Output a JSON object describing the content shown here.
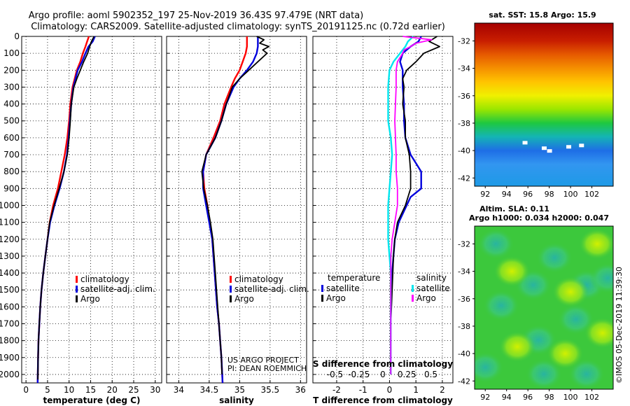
{
  "title_line1": "Argo profile: aoml 5902352_197 25-Nov-2019 36.43S 97.479E (NRT data)",
  "title_line2": "Climatology: CARS2009. Satellite-adjusted climatology: synTS_20191125.nc (0.72d earlier)",
  "map_sst_title": "sat. SST: 15.8 Argo: 15.9",
  "map_sla_title1": "Altim. SLA: 0.11",
  "map_sla_title2": "Argo h1000: 0.034 h2000: 0.047",
  "project_line1": "US ARGO PROJECT",
  "project_line2": "PI: DEAN ROEMMICH",
  "imos_stamp": "©IMOS 05-Dec-2019 11:39:30",
  "colors": {
    "climatology": "#ff0000",
    "satellite": "#0000dd",
    "argo": "#000000",
    "sat_s": "#00e5ee",
    "argo_s": "#ff00ff"
  },
  "chart_data": [
    {
      "type": "line",
      "panel": "temperature",
      "xlabel": "temperature (deg C)",
      "xlim": [
        -1,
        31.5
      ],
      "xticks": [
        0,
        5,
        10,
        15,
        20,
        25,
        30
      ],
      "xtick_labels": [
        "0",
        "5",
        "10",
        "15",
        "20",
        "25",
        "30"
      ],
      "ylim": [
        2050,
        0
      ],
      "yticks": [
        0,
        100,
        200,
        300,
        400,
        500,
        600,
        700,
        800,
        900,
        1000,
        1100,
        1200,
        1300,
        1400,
        1500,
        1600,
        1700,
        1800,
        1900,
        2000
      ],
      "ytick_labels": [
        "0",
        "100",
        "200",
        "300",
        "400",
        "500",
        "600",
        "700",
        "800",
        "900",
        "1000",
        "1100",
        "1200",
        "1300",
        "1400",
        "1500",
        "1600",
        "1700",
        "1800",
        "1900",
        "2000"
      ],
      "legend": [
        "climatology",
        "satellite-adj. clim.",
        "Argo"
      ],
      "series": [
        {
          "name": "climatology",
          "key": "climatology",
          "x": [
            14.6,
            14.2,
            13.8,
            13.2,
            12.6,
            11.8,
            11.3,
            10.8,
            10.3,
            10.0,
            9.6,
            9.0,
            8.2,
            7.4,
            6.3,
            5.5,
            5.0,
            4.5,
            4.0,
            3.6,
            3.3,
            3.1,
            2.9,
            2.8,
            2.7
          ],
          "y": [
            0,
            30,
            60,
            100,
            150,
            200,
            250,
            300,
            400,
            500,
            600,
            700,
            800,
            900,
            1000,
            1100,
            1200,
            1300,
            1400,
            1500,
            1600,
            1700,
            1800,
            1900,
            2050
          ]
        },
        {
          "name": "satellite-adj. clim.",
          "key": "satellite",
          "x": [
            16.0,
            15.5,
            14.5,
            13.8,
            13.0,
            12.0,
            11.5,
            11.0,
            10.5,
            10.2,
            9.9,
            9.5,
            8.8,
            7.8,
            6.6,
            5.6,
            5.0,
            4.5,
            4.0,
            3.6,
            3.3,
            3.1,
            2.9,
            2.8,
            2.7
          ],
          "y": [
            0,
            30,
            60,
            100,
            150,
            200,
            250,
            300,
            400,
            500,
            600,
            700,
            800,
            900,
            1000,
            1100,
            1200,
            1300,
            1400,
            1500,
            1600,
            1700,
            1800,
            1900,
            2050
          ]
        },
        {
          "name": "Argo",
          "key": "argo",
          "x": [
            15.8,
            15.2,
            14.8,
            14.3,
            13.4,
            12.6,
            11.8,
            11.1,
            10.5,
            10.3,
            10.0,
            9.6,
            8.8,
            7.7,
            6.5,
            5.5,
            5.0,
            4.5,
            4.0,
            3.6,
            3.3,
            3.1,
            2.9,
            2.8,
            2.75
          ],
          "y": [
            0,
            30,
            60,
            100,
            150,
            200,
            250,
            300,
            400,
            500,
            600,
            700,
            800,
            900,
            1000,
            1100,
            1200,
            1300,
            1400,
            1500,
            1600,
            1700,
            1800,
            1900,
            2030
          ]
        }
      ]
    },
    {
      "type": "line",
      "panel": "salinity",
      "xlabel": "salinity",
      "xlim": [
        33.8,
        36.1
      ],
      "xticks": [
        34,
        34.5,
        35,
        35.5,
        36
      ],
      "xtick_labels": [
        "34",
        "34.5",
        "35",
        "35.5",
        "36"
      ],
      "ylim": [
        2050,
        0
      ],
      "legend": [
        "climatology",
        "satellite-adj. clim.",
        "Argo"
      ],
      "series": [
        {
          "name": "climatology",
          "key": "climatology",
          "x": [
            35.12,
            35.12,
            35.1,
            35.05,
            35.0,
            34.92,
            34.86,
            34.75,
            34.68,
            34.57,
            34.45,
            34.4,
            34.42,
            34.47,
            34.51,
            34.55,
            34.59,
            34.63,
            34.66,
            34.68,
            34.7,
            34.72
          ],
          "y": [
            0,
            60,
            100,
            150,
            200,
            250,
            300,
            400,
            500,
            600,
            700,
            800,
            900,
            1000,
            1100,
            1200,
            1400,
            1600,
            1700,
            1800,
            1900,
            2050
          ]
        },
        {
          "name": "satellite-adj. clim.",
          "key": "satellite",
          "x": [
            35.3,
            35.3,
            35.28,
            35.22,
            35.12,
            35.0,
            34.9,
            34.78,
            34.7,
            34.6,
            34.45,
            34.4,
            34.4,
            34.45,
            34.5,
            34.55,
            34.59,
            34.63,
            34.66,
            34.68,
            34.7,
            34.72
          ],
          "y": [
            0,
            60,
            100,
            150,
            200,
            250,
            300,
            400,
            500,
            600,
            700,
            800,
            900,
            1000,
            1100,
            1200,
            1400,
            1600,
            1700,
            1800,
            1900,
            2050
          ]
        },
        {
          "name": "Argo",
          "key": "argo",
          "x": [
            35.28,
            35.4,
            35.33,
            35.48,
            35.38,
            35.45,
            35.3,
            35.15,
            35.0,
            34.88,
            34.78,
            34.7,
            34.6,
            34.45,
            34.38,
            34.41,
            34.47,
            34.52,
            34.56,
            34.6,
            34.64,
            34.66,
            34.68,
            34.7,
            34.71
          ],
          "y": [
            0,
            20,
            40,
            60,
            80,
            100,
            150,
            200,
            250,
            300,
            400,
            500,
            600,
            700,
            800,
            900,
            1000,
            1100,
            1200,
            1400,
            1600,
            1700,
            1800,
            1900,
            2000
          ]
        }
      ]
    },
    {
      "type": "line",
      "panel": "difference",
      "xlabel": "T difference from climatology",
      "xlim": [
        -2.9,
        2.4
      ],
      "xticks": [
        -2,
        -1,
        0,
        1,
        2
      ],
      "xtick_labels": [
        "-2",
        "-1",
        "0",
        "1",
        "2"
      ],
      "s_axis_label": "S difference from climatology",
      "s_ticks": [
        -0.5,
        -0.25,
        0,
        0.25,
        0.5
      ],
      "s_tick_labels": [
        "-0.5",
        "-0.25",
        "0",
        "0.25",
        "0.5"
      ],
      "ylim": [
        2050,
        0
      ],
      "legend_left_title": "temperature",
      "legend_left": [
        "satellite",
        "Argo"
      ],
      "legend_right_title": "salinity",
      "legend_right": [
        "satellite",
        "Argo"
      ],
      "series": [
        {
          "name": "temperature satellite",
          "key": "satellite",
          "x": [
            1.2,
            1.1,
            0.8,
            0.5,
            0.4,
            0.5,
            0.5,
            0.55,
            0.55,
            0.6,
            0.8,
            1.0,
            1.2,
            1.2,
            0.8,
            0.5,
            0.35,
            0.2,
            0.15,
            0.1,
            0.05,
            0.05,
            0.05,
            0.05
          ],
          "y": [
            0,
            30,
            60,
            100,
            150,
            200,
            300,
            400,
            500,
            600,
            700,
            750,
            800,
            900,
            950,
            1050,
            1100,
            1200,
            1300,
            1400,
            1600,
            1800,
            1900,
            2000
          ]
        },
        {
          "name": "temperature Argo",
          "key": "argo",
          "x": [
            1.8,
            1.5,
            1.9,
            1.3,
            1.0,
            0.65,
            0.5,
            0.55,
            0.5,
            0.6,
            0.6,
            0.75,
            0.8,
            0.8,
            0.6,
            0.3,
            0.2,
            0.15,
            0.1,
            0.05,
            0.05,
            0.05
          ],
          "y": [
            0,
            30,
            60,
            100,
            150,
            200,
            250,
            300,
            400,
            500,
            600,
            700,
            800,
            900,
            1000,
            1100,
            1200,
            1300,
            1500,
            1700,
            1900,
            2000
          ]
        },
        {
          "name": "salinity satellite",
          "key": "sat_s",
          "x": [
            0.9,
            0.7,
            0.6,
            0.4,
            0.15,
            0.0,
            -0.05,
            -0.05,
            -0.05,
            0.05,
            0.1,
            0.05,
            0.0,
            -0.05,
            -0.05,
            0.0,
            0.05,
            0.05,
            0.05,
            0.05,
            0.05
          ],
          "y": [
            0,
            30,
            60,
            100,
            150,
            200,
            300,
            400,
            500,
            600,
            700,
            800,
            900,
            1000,
            1200,
            1300,
            1400,
            1600,
            1800,
            1900,
            2000
          ]
        },
        {
          "name": "salinity Argo",
          "key": "argo_s",
          "x": [
            0.5,
            1.6,
            1.0,
            0.8,
            0.55,
            0.5,
            0.3,
            0.25,
            0.25,
            0.2,
            0.25,
            0.25,
            0.3,
            0.3,
            0.2,
            0.1,
            0.05,
            0.05,
            0.05,
            0.05,
            0.05
          ],
          "y": [
            0,
            20,
            40,
            60,
            80,
            100,
            150,
            200,
            300,
            500,
            700,
            800,
            900,
            1000,
            1100,
            1200,
            1300,
            1500,
            1700,
            1900,
            2000
          ]
        }
      ]
    },
    {
      "type": "heatmap",
      "panel": "sst-map",
      "title": "sat. SST: 15.8 Argo: 15.9",
      "xticks": [
        92,
        94,
        96,
        98,
        100,
        102
      ],
      "xtick_labels": [
        "92",
        "94",
        "96",
        "98",
        "100",
        "102"
      ],
      "xlim": [
        91,
        104
      ],
      "yticks": [
        -32,
        -34,
        -36,
        -38,
        -40,
        -42
      ],
      "ytick_labels": [
        "-32",
        "-34",
        "-36",
        "-38",
        "-40",
        "-42"
      ],
      "ylim": [
        -42.6,
        -30.7
      ],
      "bands": [
        {
          "lat": -30.7,
          "color": "#a50000"
        },
        {
          "lat": -32.0,
          "color": "#c81e00"
        },
        {
          "lat": -33.0,
          "color": "#e65a00"
        },
        {
          "lat": -34.0,
          "color": "#f59000"
        },
        {
          "lat": -35.0,
          "color": "#ffc400"
        },
        {
          "lat": -36.0,
          "color": "#f0f000"
        },
        {
          "lat": -37.0,
          "color": "#9ae600"
        },
        {
          "lat": -38.0,
          "color": "#1ec840"
        },
        {
          "lat": -39.0,
          "color": "#14b4b4"
        },
        {
          "lat": -40.0,
          "color": "#1e6ee6"
        },
        {
          "lat": -41.0,
          "color": "#3296f0"
        },
        {
          "lat": -42.6,
          "color": "#1e9ae6"
        }
      ]
    },
    {
      "type": "heatmap",
      "panel": "sla-map",
      "title": "Altim. SLA: 0.11",
      "subtitle": "Argo h1000: 0.034 h2000: 0.047",
      "xticks": [
        92,
        94,
        96,
        98,
        100,
        102
      ],
      "xtick_labels": [
        "92",
        "94",
        "96",
        "98",
        "100",
        "102"
      ],
      "xlim": [
        91,
        104
      ],
      "yticks": [
        -32,
        -34,
        -36,
        -38,
        -40,
        -42
      ],
      "ytick_labels": [
        "-32",
        "-34",
        "-36",
        "-38",
        "-40",
        "-42"
      ],
      "ylim": [
        -42.6,
        -30.7
      ],
      "blobs": [
        {
          "lon": 93.0,
          "lat": -32.0,
          "kind": "cyan"
        },
        {
          "lon": 98.5,
          "lat": -33.0,
          "kind": "cyan"
        },
        {
          "lon": 96.5,
          "lat": -35.0,
          "kind": "cyan"
        },
        {
          "lon": 101.5,
          "lat": -35.0,
          "kind": "cyan"
        },
        {
          "lon": 103.5,
          "lat": -34.5,
          "kind": "cyan"
        },
        {
          "lon": 93.5,
          "lat": -36.5,
          "kind": "cyan"
        },
        {
          "lon": 100.5,
          "lat": -37.5,
          "kind": "cyan"
        },
        {
          "lon": 97.0,
          "lat": -39.0,
          "kind": "cyan"
        },
        {
          "lon": 92.0,
          "lat": -41.0,
          "kind": "cyan"
        },
        {
          "lon": 101.5,
          "lat": -41.5,
          "kind": "cyan"
        },
        {
          "lon": 97.5,
          "lat": -41.5,
          "kind": "cyan"
        },
        {
          "lon": 100.0,
          "lat": -35.5,
          "kind": "yellow"
        },
        {
          "lon": 94.5,
          "lat": -34.0,
          "kind": "yellow"
        },
        {
          "lon": 95.0,
          "lat": -39.5,
          "kind": "yellow"
        },
        {
          "lon": 99.5,
          "lat": -40.0,
          "kind": "yellow"
        },
        {
          "lon": 102.5,
          "lat": -32.0,
          "kind": "yellow"
        },
        {
          "lon": 103.0,
          "lat": -38.5,
          "kind": "yellow"
        }
      ]
    }
  ]
}
